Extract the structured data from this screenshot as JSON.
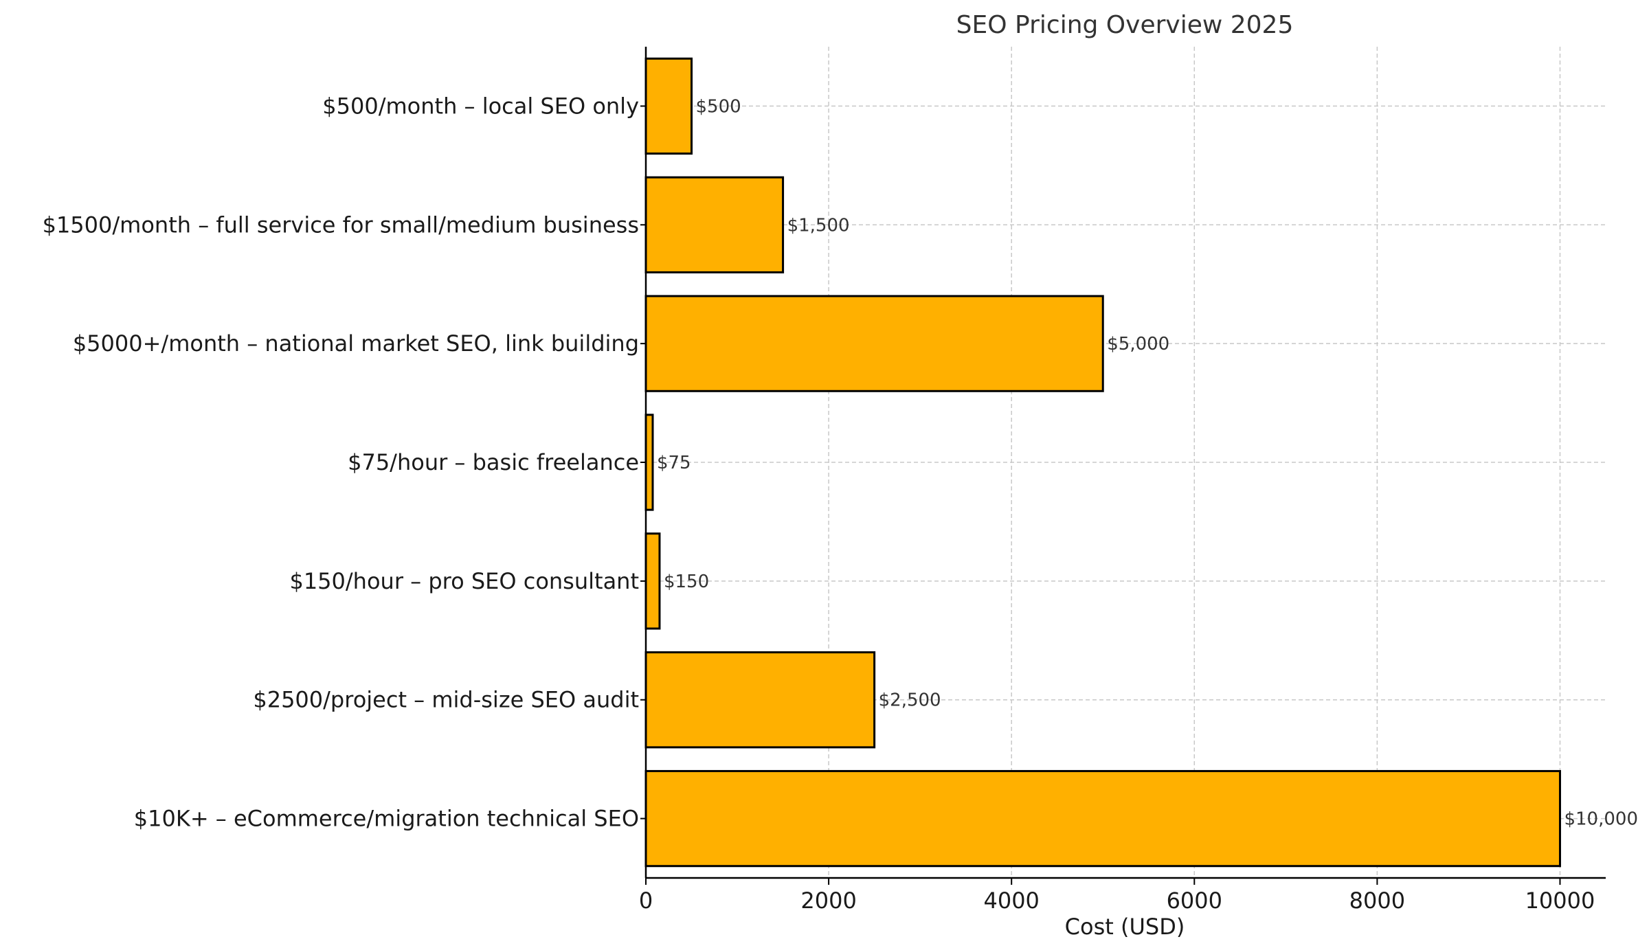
{
  "chart_data": {
    "type": "bar",
    "orientation": "horizontal",
    "title": "SEO Pricing Overview 2025",
    "xlabel": "Cost (USD)",
    "ylabel": "",
    "xlim": [
      0,
      10500
    ],
    "xticks": [
      0,
      2000,
      4000,
      6000,
      8000,
      10000
    ],
    "grid": true,
    "bar_color": "#FFB000",
    "categories": [
      "$500/month – local SEO only",
      "$1500/month – full service for small/medium business",
      "$5000+/month – national market SEO, link building",
      "$75/hour – basic freelance",
      "$150/hour – pro SEO consultant",
      "$2500/project – mid-size SEO audit",
      "$10K+ – eCommerce/migration technical SEO"
    ],
    "values": [
      500,
      1500,
      5000,
      75,
      150,
      2500,
      10000
    ],
    "data_labels": [
      "$500",
      "$1,500",
      "$5,000",
      "$75",
      "$150",
      "$2,500",
      "$10,000"
    ]
  }
}
